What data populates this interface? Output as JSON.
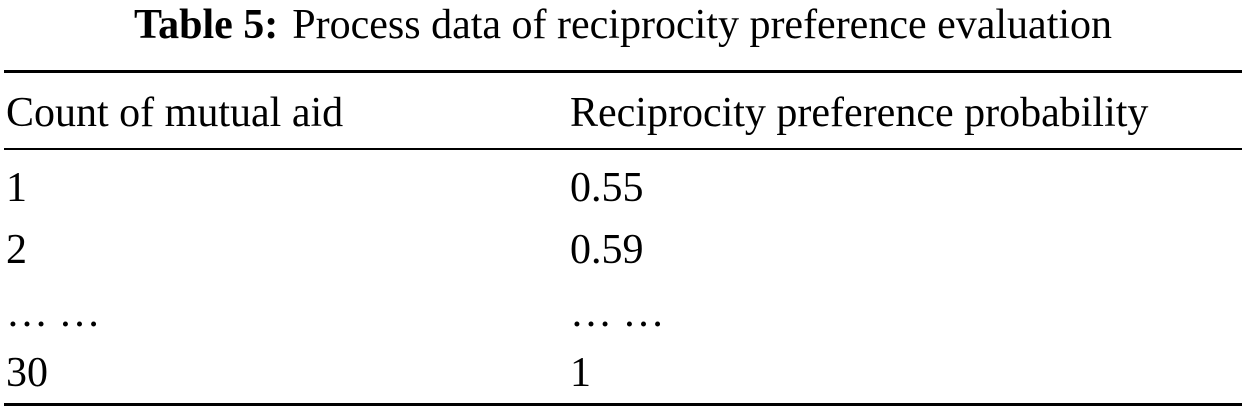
{
  "title": {
    "label": "Table 5:",
    "text": "Process data of reciprocity preference evaluation"
  },
  "table": {
    "header": [
      "Count of mutual aid",
      "Reciprocity preference probability"
    ],
    "rows": [
      [
        1,
        0.55
      ],
      [
        2,
        0.59
      ],
      [
        "… …",
        "… …"
      ],
      [
        30,
        1
      ]
    ]
  }
}
